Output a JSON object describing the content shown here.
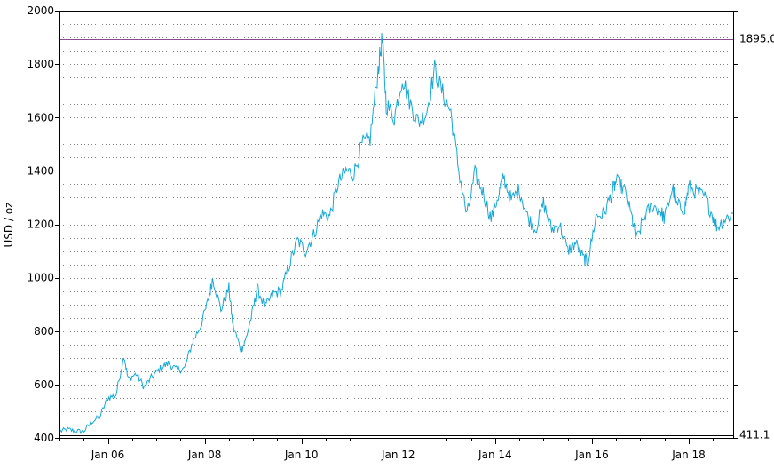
{
  "chart_data": {
    "type": "line",
    "title": "",
    "xlabel": "",
    "ylabel": "USD / oz",
    "ylim": [
      400,
      2000
    ],
    "xlim": [
      "2005-01",
      "2018-12"
    ],
    "y_major_ticks": [
      "400",
      "600",
      "800",
      "1000",
      "1200",
      "1400",
      "1600",
      "1800",
      "2000"
    ],
    "x_tick_labels": [
      "Jan 06",
      "Jan 08",
      "Jan 10",
      "Jan 12",
      "Jan 14",
      "Jan 16",
      "Jan 18"
    ],
    "x_tick_dates": [
      "2006-01",
      "2008-01",
      "2010-01",
      "2012-01",
      "2014-01",
      "2016-01",
      "2018-01"
    ],
    "grid": "dotted horizontal lines every 50 USD",
    "reference_lines": [
      {
        "label": "1895.0",
        "value": 1895.0,
        "color": "#8a4a8f"
      },
      {
        "label": "411.1",
        "value": 411.1,
        "color": "#000000"
      }
    ],
    "series": [
      {
        "color": "#17a8d8",
        "points": [
          [
            "2005-01",
            425
          ],
          [
            "2005-03",
            432
          ],
          [
            "2005-05",
            425
          ],
          [
            "2005-07",
            425
          ],
          [
            "2005-09",
            460
          ],
          [
            "2005-11",
            480
          ],
          [
            "2006-01",
            550
          ],
          [
            "2006-03",
            560
          ],
          [
            "2006-05",
            710
          ],
          [
            "2006-06",
            620
          ],
          [
            "2006-08",
            640
          ],
          [
            "2006-10",
            590
          ],
          [
            "2006-12",
            630
          ],
          [
            "2007-02",
            660
          ],
          [
            "2007-04",
            680
          ],
          [
            "2007-06",
            655
          ],
          [
            "2007-08",
            660
          ],
          [
            "2007-10",
            760
          ],
          [
            "2007-12",
            820
          ],
          [
            "2008-02",
            920
          ],
          [
            "2008-03",
            1000
          ],
          [
            "2008-05",
            880
          ],
          [
            "2008-07",
            960
          ],
          [
            "2008-08",
            820
          ],
          [
            "2008-10",
            730
          ],
          [
            "2008-11",
            760
          ],
          [
            "2009-01",
            880
          ],
          [
            "2009-02",
            960
          ],
          [
            "2009-04",
            890
          ],
          [
            "2009-06",
            940
          ],
          [
            "2009-08",
            950
          ],
          [
            "2009-10",
            1050
          ],
          [
            "2009-12",
            1140
          ],
          [
            "2010-02",
            1100
          ],
          [
            "2010-04",
            1160
          ],
          [
            "2010-06",
            1240
          ],
          [
            "2010-08",
            1230
          ],
          [
            "2010-10",
            1350
          ],
          [
            "2010-12",
            1400
          ],
          [
            "2011-02",
            1390
          ],
          [
            "2011-04",
            1500
          ],
          [
            "2011-06",
            1520
          ],
          [
            "2011-08",
            1780
          ],
          [
            "2011-09",
            1895
          ],
          [
            "2011-10",
            1650
          ],
          [
            "2011-12",
            1600
          ],
          [
            "2012-02",
            1750
          ],
          [
            "2012-04",
            1650
          ],
          [
            "2012-06",
            1580
          ],
          [
            "2012-08",
            1620
          ],
          [
            "2012-10",
            1780
          ],
          [
            "2012-12",
            1690
          ],
          [
            "2013-02",
            1620
          ],
          [
            "2013-04",
            1400
          ],
          [
            "2013-06",
            1230
          ],
          [
            "2013-08",
            1390
          ],
          [
            "2013-10",
            1320
          ],
          [
            "2013-12",
            1220
          ],
          [
            "2014-02",
            1320
          ],
          [
            "2014-03",
            1380
          ],
          [
            "2014-05",
            1290
          ],
          [
            "2014-07",
            1330
          ],
          [
            "2014-09",
            1230
          ],
          [
            "2014-11",
            1180
          ],
          [
            "2015-01",
            1280
          ],
          [
            "2015-03",
            1180
          ],
          [
            "2015-05",
            1200
          ],
          [
            "2015-07",
            1100
          ],
          [
            "2015-09",
            1130
          ],
          [
            "2015-11",
            1070
          ],
          [
            "2015-12",
            1060
          ],
          [
            "2016-02",
            1230
          ],
          [
            "2016-04",
            1240
          ],
          [
            "2016-06",
            1320
          ],
          [
            "2016-07",
            1360
          ],
          [
            "2016-09",
            1330
          ],
          [
            "2016-11",
            1220
          ],
          [
            "2016-12",
            1140
          ],
          [
            "2017-02",
            1230
          ],
          [
            "2017-04",
            1270
          ],
          [
            "2017-06",
            1250
          ],
          [
            "2017-07",
            1220
          ],
          [
            "2017-09",
            1340
          ],
          [
            "2017-10",
            1270
          ],
          [
            "2017-12",
            1260
          ],
          [
            "2018-01",
            1340
          ],
          [
            "2018-03",
            1320
          ],
          [
            "2018-05",
            1300
          ],
          [
            "2018-07",
            1230
          ],
          [
            "2018-08",
            1190
          ],
          [
            "2018-10",
            1220
          ],
          [
            "2018-12",
            1240
          ]
        ]
      }
    ]
  }
}
